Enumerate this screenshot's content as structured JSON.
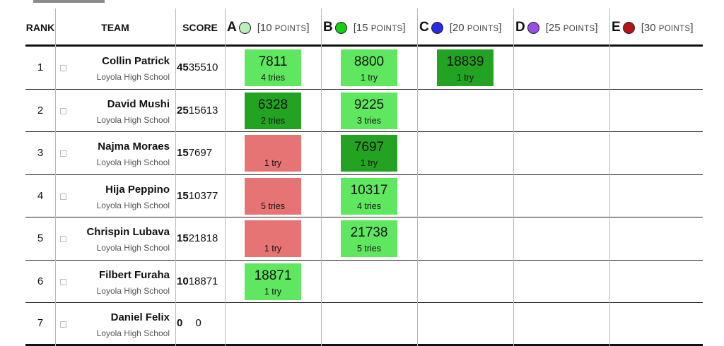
{
  "header": {
    "rank": "RANK",
    "team": "TEAM",
    "score": "SCORE"
  },
  "problems": [
    {
      "label": "A",
      "color": "#b9efb9",
      "points_open": "[10 ",
      "points_sc": "POINTS",
      "points_close": "]",
      "dot_icon": "balloon-icon"
    },
    {
      "label": "B",
      "color": "#12d012",
      "points_open": "[15 ",
      "points_sc": "POINTS",
      "points_close": "]",
      "dot_icon": "balloon-icon"
    },
    {
      "label": "C",
      "color": "#2a2ae6",
      "points_open": "[20 ",
      "points_sc": "POINTS",
      "points_close": "]",
      "dot_icon": "balloon-icon"
    },
    {
      "label": "D",
      "color": "#9a4ee6",
      "points_open": "[25 ",
      "points_sc": "POINTS",
      "points_close": "]",
      "dot_icon": "balloon-icon"
    },
    {
      "label": "E",
      "color": "#b81414",
      "points_open": "[30 ",
      "points_sc": "POINTS",
      "points_close": "]",
      "dot_icon": "balloon-icon"
    }
  ],
  "status_colors": {
    "solved": "#5fe85f",
    "first_solve": "#22a322",
    "failed": "#e77474"
  },
  "rows": [
    {
      "rank": "1",
      "name": "Collin Patrick",
      "school": "Loyola High School",
      "solved": "45",
      "penalty": "35510",
      "cells": [
        {
          "col": 0,
          "status": "solved",
          "time": "7811",
          "tries": "4 tries"
        },
        {
          "col": 1,
          "status": "solved",
          "time": "8800",
          "tries": "1 try"
        },
        {
          "col": 2,
          "status": "first",
          "time": "18839",
          "tries": "1 try"
        }
      ]
    },
    {
      "rank": "2",
      "name": "David Mushi",
      "school": "Loyola High School",
      "solved": "25",
      "penalty": "15613",
      "cells": [
        {
          "col": 0,
          "status": "first",
          "time": "6328",
          "tries": "2 tries"
        },
        {
          "col": 1,
          "status": "solved",
          "time": "9225",
          "tries": "3 tries"
        }
      ]
    },
    {
      "rank": "3",
      "name": "Najma Moraes",
      "school": "Loyola High School",
      "solved": "15",
      "penalty": "7697",
      "cells": [
        {
          "col": 0,
          "status": "failed",
          "time": "",
          "tries": "1 try"
        },
        {
          "col": 1,
          "status": "first",
          "time": "7697",
          "tries": "1 try"
        }
      ]
    },
    {
      "rank": "4",
      "name": "Hija Peppino",
      "school": "Loyola High School",
      "solved": "15",
      "penalty": "10377",
      "cells": [
        {
          "col": 0,
          "status": "failed",
          "time": "",
          "tries": "5 tries"
        },
        {
          "col": 1,
          "status": "solved",
          "time": "10317",
          "tries": "4 tries"
        }
      ]
    },
    {
      "rank": "5",
      "name": "Chrispin Lubava",
      "school": "Loyola High School",
      "solved": "15",
      "penalty": "21818",
      "cells": [
        {
          "col": 0,
          "status": "failed",
          "time": "",
          "tries": "1 try"
        },
        {
          "col": 1,
          "status": "solved",
          "time": "21738",
          "tries": "5 tries"
        }
      ]
    },
    {
      "rank": "6",
      "name": "Filbert Furaha",
      "school": "Loyola High School",
      "solved": "10",
      "penalty": "18871",
      "cells": [
        {
          "col": 0,
          "status": "solved",
          "time": "18871",
          "tries": "1 try"
        }
      ]
    },
    {
      "rank": "7",
      "name": "Daniel Felix",
      "school": "Loyola High School",
      "solved": "0",
      "penalty": "0",
      "cells": []
    }
  ]
}
